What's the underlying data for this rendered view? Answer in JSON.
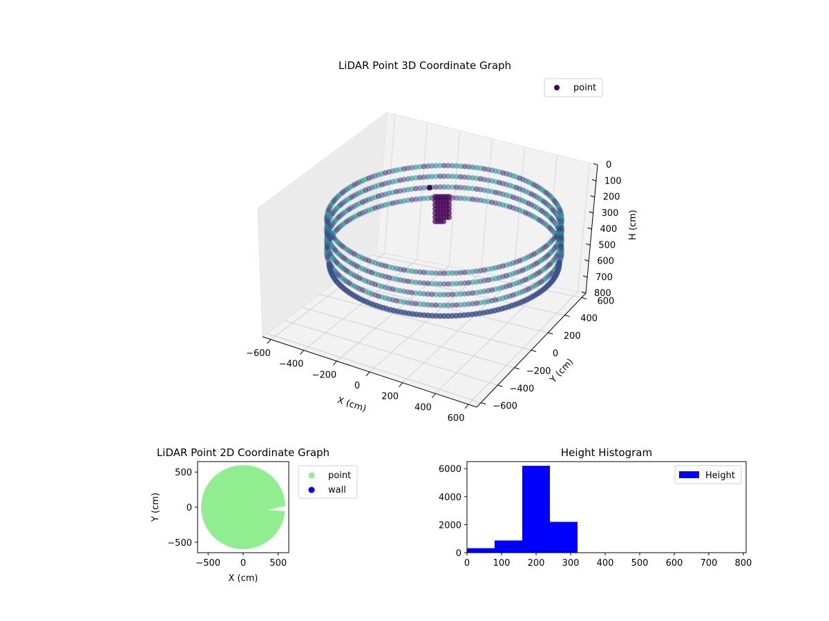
{
  "chart_data": [
    {
      "type": "scatter",
      "title": "LiDAR Point 3D Coordinate Graph",
      "xlabel": "X (cm)",
      "ylabel": "Y (cm)",
      "zlabel": "H (cm)",
      "xlim": [
        -650,
        650
      ],
      "ylim": [
        -650,
        650
      ],
      "zlim": [
        800,
        0
      ],
      "xticks": [
        -600,
        -400,
        -200,
        0,
        200,
        400,
        600
      ],
      "yticks": [
        -600,
        -400,
        -200,
        0,
        200,
        400,
        600
      ],
      "zticks": [
        0,
        100,
        200,
        300,
        400,
        500,
        600,
        700,
        800
      ],
      "grid": true,
      "legend": {
        "placement": "upper-right",
        "entries": [
          "point"
        ]
      },
      "colormap": "viridis",
      "series": [
        {
          "name": "point",
          "description_shape": "ring",
          "radius": 600
        }
      ],
      "colors": {
        "marker": "#440154",
        "ring_mid": "#3b528b",
        "ring_light": "#21918c",
        "pane": "#f2f2f2",
        "grid": "#d0d0d0"
      }
    },
    {
      "type": "scatter",
      "title": "LiDAR Point 2D Coordinate Graph",
      "xlabel": "X (cm)",
      "ylabel": "Y (cm)",
      "xlim": [
        -650,
        650
      ],
      "ylim": [
        -650,
        650
      ],
      "xticks": [
        -500,
        0,
        500
      ],
      "yticks": [
        -500,
        0,
        500
      ],
      "legend": {
        "placement": "outside-right",
        "entries": [
          "point",
          "wall"
        ]
      },
      "series": [
        {
          "name": "point",
          "color": "#90ee90",
          "region": "disk",
          "radius": 600
        },
        {
          "name": "wall",
          "color": "#0000ff"
        }
      ]
    },
    {
      "type": "bar",
      "title": "Height Histogram",
      "xlim": [
        0,
        808
      ],
      "ylim": [
        0,
        6500
      ],
      "xticks": [
        0,
        100,
        200,
        300,
        400,
        500,
        600,
        700,
        800
      ],
      "yticks": [
        0,
        2000,
        4000,
        6000
      ],
      "legend": {
        "placement": "upper-right",
        "entries": [
          "Height"
        ]
      },
      "bin_edges": [
        0,
        80,
        160,
        240,
        320,
        400,
        480,
        560,
        640,
        720,
        800
      ],
      "series": [
        {
          "name": "Height",
          "color": "#0000ff",
          "values": [
            320,
            870,
            6200,
            2200,
            0,
            0,
            0,
            0,
            0,
            0
          ]
        }
      ]
    }
  ]
}
